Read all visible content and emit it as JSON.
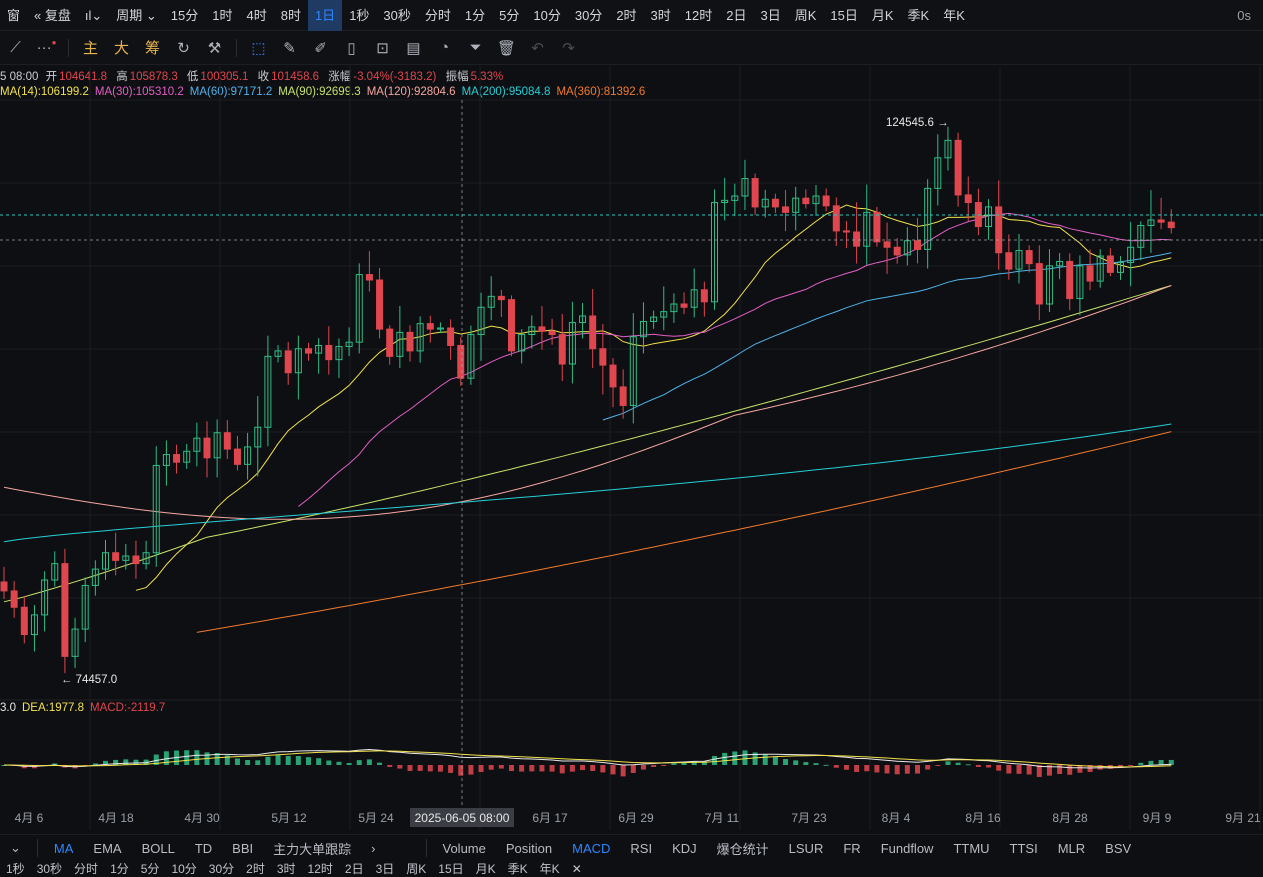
{
  "toolbar": {
    "items": [
      "窗",
      "复盘",
      "周期",
      "15分",
      "1时",
      "4时",
      "8时",
      "1日",
      "1秒",
      "30秒",
      "分时",
      "1分",
      "5分",
      "10分",
      "30分",
      "2时",
      "3时",
      "12时",
      "2日",
      "3日",
      "周K",
      "15日",
      "月K",
      "季K",
      "年K"
    ],
    "active": "1日",
    "right_label": "0s"
  },
  "drawing_tools": {
    "text_tools": [
      "主",
      "大",
      "筹"
    ]
  },
  "ohlc": {
    "date": "5 08:00",
    "open_label": "开",
    "open": "104641.8",
    "high_label": "高",
    "high": "105878.3",
    "low_label": "低",
    "low": "100305.1",
    "close_label": "收",
    "close": "101458.6",
    "change_label": "涨幅",
    "change": "-3.04%(-3183.2)",
    "amp_label": "振幅",
    "amp": "5.33%"
  },
  "ma_legend": [
    {
      "label": "MA(14):106199.2",
      "color": "#f2e24c"
    },
    {
      "label": "MA(30):105310.2",
      "color": "#e35fc7"
    },
    {
      "label": "MA(60):97171.2",
      "color": "#4fb3ea"
    },
    {
      "label": "MA(90):92699.3",
      "color": "#c6e46a"
    },
    {
      "label": "MA(120):92804.6",
      "color": "#f6a6a0"
    },
    {
      "label": "MA(200):95084.8",
      "color": "#25d0d8"
    },
    {
      "label": "MA(360):81392.6",
      "color": "#f07a2c"
    }
  ],
  "macd_legend": [
    {
      "label": "3.0",
      "color": "#e8e8e8"
    },
    {
      "label": "DEA:1977.8",
      "color": "#f2e24c"
    },
    {
      "label": "MACD:-2119.7",
      "color": "#e0464e"
    }
  ],
  "colors": {
    "up": "#2ebd85",
    "down": "#e0464e",
    "grid": "#1b1d22",
    "bg": "#0e0f12"
  },
  "chart_data": {
    "type": "candlestick",
    "title": "",
    "high_marker": "124545.6",
    "low_marker": "74457.0",
    "crosshair_label": "2025-06-05 08:00",
    "x_ticks": [
      "4月 6",
      "4月 18",
      "4月 30",
      "5月 12",
      "5月 24",
      "6月 5",
      "6月 17",
      "6月 29",
      "7月 11",
      "7月 23",
      "8月 4",
      "8月 16",
      "8月 28",
      "9月 9",
      "9月 21"
    ],
    "price_range": [
      72000,
      127000
    ],
    "closes": [
      82000,
      80500,
      78000,
      79800,
      83000,
      84500,
      76000,
      78500,
      82500,
      84000,
      85500,
      84800,
      85200,
      84500,
      85500,
      93500,
      94500,
      93800,
      94800,
      96000,
      94200,
      96500,
      95000,
      93600,
      95200,
      97000,
      103500,
      104000,
      102000,
      104200,
      103800,
      104500,
      103200,
      104400,
      104800,
      111000,
      110500,
      106000,
      103500,
      105700,
      104000,
      106500,
      106000,
      106100,
      104500,
      101500,
      105500,
      108000,
      109000,
      108700,
      104000,
      105500,
      106200,
      105800,
      105500,
      102800,
      106600,
      107200,
      104200,
      102700,
      100700,
      99000,
      105300,
      106700,
      107100,
      107600,
      108300,
      108000,
      109600,
      108500,
      117600,
      117800,
      118200,
      119800,
      117200,
      117900,
      117200,
      116700,
      118000,
      117500,
      118200,
      117300,
      115000,
      114900,
      113600,
      116700,
      114000,
      113500,
      112800,
      114100,
      113300,
      118900,
      121700,
      123300,
      118300,
      117600,
      115400,
      117200,
      113000,
      111500,
      113200,
      112000,
      108300,
      111800,
      112200,
      108800,
      111800,
      110400,
      112700,
      111200,
      112100,
      113500,
      115500,
      116000,
      115800,
      115300
    ]
  },
  "bottom_tabs_left": [
    "MA",
    "EMA",
    "BOLL",
    "TD",
    "BBI",
    "主力大单跟踪"
  ],
  "bottom_tabs_right": [
    "Volume",
    "Position",
    "MACD",
    "RSI",
    "KDJ",
    "爆仓统计",
    "LSUR",
    "FR",
    "Fundflow",
    "TTMU",
    "TTSI",
    "MLR",
    "BSV"
  ],
  "active_left": "MA",
  "active_right": "MACD",
  "bottom_bar": [
    "1秒",
    "30秒",
    "分时",
    "1分",
    "5分",
    "10分",
    "30分",
    "2时",
    "3时",
    "12时",
    "2日",
    "3日",
    "周K",
    "15日",
    "月K",
    "季K",
    "年K"
  ]
}
